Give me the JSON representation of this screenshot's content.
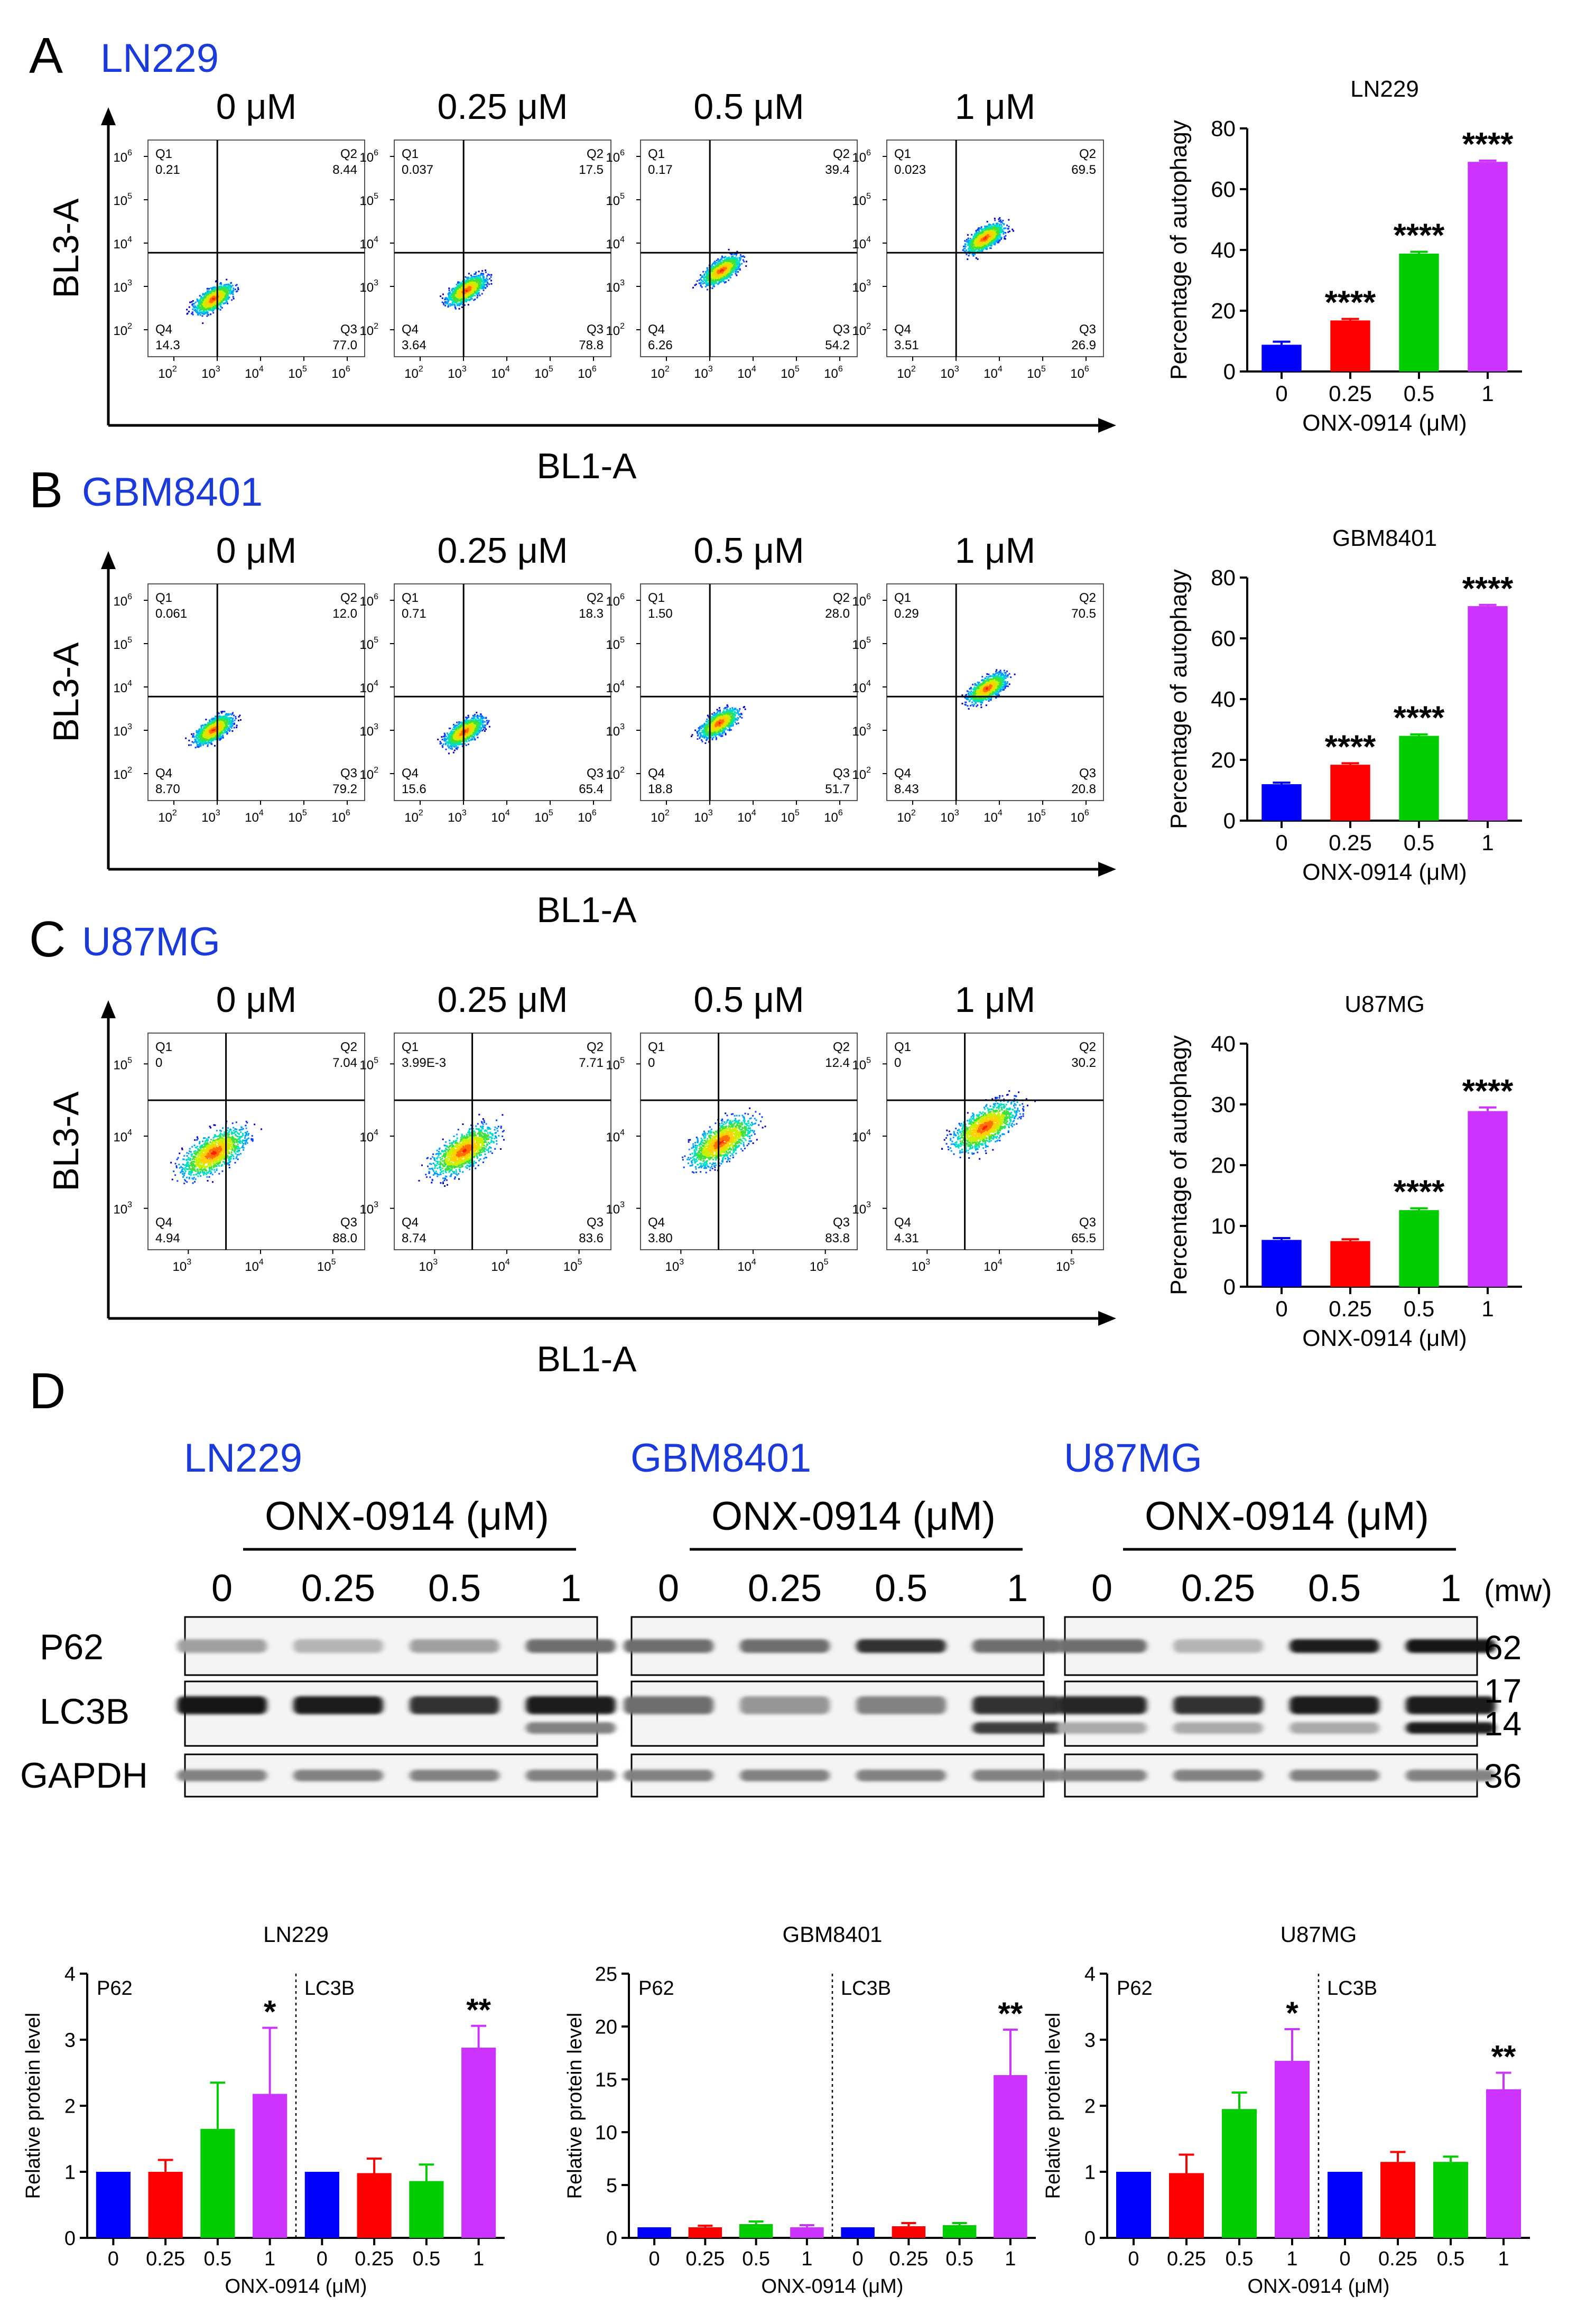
{
  "units": {
    "um": "μM",
    "x_axis": "ONX-0914 (μM)",
    "x_axis_bar": "ONX-0914 (μM)"
  },
  "panels": [
    {
      "letter": "A",
      "cell": "LN229"
    },
    {
      "letter": "B",
      "cell": "GBM8401"
    },
    {
      "letter": "C",
      "cell": "U87MG"
    },
    {
      "letter": "D"
    }
  ],
  "flow": {
    "y_axis_label": "BL3-A",
    "x_axis_label": "BL1-A",
    "doses": [
      "0 μM",
      "0.25 μM",
      "0.5 μM",
      "1 μM"
    ],
    "rows": [
      {
        "cell": "LN229",
        "y_exp": [
          "2",
          "3",
          "4",
          "5",
          "6"
        ],
        "x_exp": [
          "2",
          "3",
          "4",
          "5",
          "6"
        ],
        "plots": [
          {
            "q1": "0.21",
            "q2": "8.44",
            "q3": "77.0",
            "q4": "14.3"
          },
          {
            "q1": "0.037",
            "q2": "17.5",
            "q3": "78.8",
            "q4": "3.64"
          },
          {
            "q1": "0.17",
            "q2": "39.4",
            "q3": "54.2",
            "q4": "6.26"
          },
          {
            "q1": "0.023",
            "q2": "69.5",
            "q3": "26.9",
            "q4": "3.51"
          }
        ]
      },
      {
        "cell": "GBM8401",
        "y_exp": [
          "2",
          "3",
          "4",
          "5",
          "6"
        ],
        "x_exp": [
          "2",
          "3",
          "4",
          "5",
          "6"
        ],
        "plots": [
          {
            "q1": "0.061",
            "q2": "12.0",
            "q3": "79.2",
            "q4": "8.70"
          },
          {
            "q1": "0.71",
            "q2": "18.3",
            "q3": "65.4",
            "q4": "15.6"
          },
          {
            "q1": "1.50",
            "q2": "28.0",
            "q3": "51.7",
            "q4": "18.8"
          },
          {
            "q1": "0.29",
            "q2": "70.5",
            "q3": "20.8",
            "q4": "8.43"
          }
        ]
      },
      {
        "cell": "U87MG",
        "y_exp": [
          "3",
          "4",
          "5"
        ],
        "x_exp": [
          "3",
          "4",
          "5"
        ],
        "plots": [
          {
            "q1": "0",
            "q2": "7.04",
            "q3": "88.0",
            "q4": "4.94"
          },
          {
            "q1": "3.99E-3",
            "q2": "7.71",
            "q3": "83.6",
            "q4": "8.74"
          },
          {
            "q1": "0",
            "q2": "12.4",
            "q3": "83.8",
            "q4": "3.80"
          },
          {
            "q1": "0",
            "q2": "30.2",
            "q3": "65.5",
            "q4": "4.31"
          }
        ]
      }
    ]
  },
  "chart_data": [
    {
      "type": "bar",
      "title": "LN229",
      "ylabel": "Percentage of autophagy",
      "xlabel": "ONX-0914 (μM)",
      "categories": [
        "0",
        "0.25",
        "0.5",
        "1"
      ],
      "values": [
        8.8,
        16.8,
        38.8,
        69.0
      ],
      "errors": [
        1.0,
        0.5,
        0.6,
        0.4
      ],
      "significance": [
        "",
        "****",
        "****",
        "****"
      ],
      "ylim": [
        0,
        80
      ],
      "yticks": [
        0,
        20,
        40,
        60,
        80
      ],
      "colors": [
        "#0000ff",
        "#ff0000",
        "#00cc00",
        "#cc33ff"
      ]
    },
    {
      "type": "bar",
      "title": "GBM8401",
      "ylabel": "Percentage of autophagy",
      "xlabel": "ONX-0914 (μM)",
      "categories": [
        "0",
        "0.25",
        "0.5",
        "1"
      ],
      "values": [
        12.0,
        18.4,
        27.9,
        70.6
      ],
      "errors": [
        0.5,
        0.5,
        0.5,
        0.4
      ],
      "significance": [
        "",
        "****",
        "****",
        "****"
      ],
      "ylim": [
        0,
        80
      ],
      "yticks": [
        0,
        20,
        40,
        60,
        80
      ],
      "colors": [
        "#0000ff",
        "#ff0000",
        "#00cc00",
        "#cc33ff"
      ]
    },
    {
      "type": "bar",
      "title": "U87MG",
      "ylabel": "Percentage of autophagy",
      "xlabel": "ONX-0914 (μM)",
      "categories": [
        "0",
        "0.25",
        "0.5",
        "1"
      ],
      "values": [
        7.7,
        7.5,
        12.6,
        28.9
      ],
      "errors": [
        0.3,
        0.3,
        0.3,
        0.6
      ],
      "significance": [
        "",
        "",
        "****",
        "****"
      ],
      "ylim": [
        0,
        40
      ],
      "yticks": [
        0,
        10,
        20,
        30,
        40
      ],
      "colors": [
        "#0000ff",
        "#ff0000",
        "#00cc00",
        "#cc33ff"
      ]
    },
    {
      "type": "bar",
      "title": "LN229",
      "ylabel": "Relative protein level",
      "xlabel": "ONX-0914 (μM)",
      "groups": [
        "P62",
        "LC3B"
      ],
      "categories": [
        "0",
        "0.25",
        "0.5",
        "1",
        "0",
        "0.25",
        "0.5",
        "1"
      ],
      "values": [
        1.0,
        1.0,
        1.65,
        2.18,
        1.0,
        0.98,
        0.86,
        2.88
      ],
      "errors": [
        0,
        0.18,
        0.7,
        1.0,
        0,
        0.22,
        0.25,
        0.33
      ],
      "significance": [
        "",
        "",
        "",
        "*",
        "",
        "",
        "",
        "**"
      ],
      "ylim": [
        0,
        4
      ],
      "yticks": [
        0,
        1,
        2,
        3,
        4
      ],
      "colors": [
        "#0000ff",
        "#ff0000",
        "#00cc00",
        "#cc33ff",
        "#0000ff",
        "#ff0000",
        "#00cc00",
        "#cc33ff"
      ]
    },
    {
      "type": "bar",
      "title": "GBM8401",
      "ylabel": "Relative protein level",
      "xlabel": "ONX-0914 (μM)",
      "groups": [
        "P62",
        "LC3B"
      ],
      "categories": [
        "0",
        "0.25",
        "0.5",
        "1",
        "0",
        "0.25",
        "0.5",
        "1"
      ],
      "values": [
        1.0,
        1.0,
        1.3,
        1.0,
        1.0,
        1.1,
        1.2,
        15.4
      ],
      "errors": [
        0,
        0.15,
        0.25,
        0.2,
        0,
        0.3,
        0.2,
        4.3
      ],
      "significance": [
        "",
        "",
        "",
        "",
        "",
        "",
        "",
        "**"
      ],
      "ylim": [
        0,
        25
      ],
      "yticks": [
        0,
        5,
        10,
        15,
        20,
        25
      ],
      "colors": [
        "#0000ff",
        "#ff0000",
        "#00cc00",
        "#cc33ff",
        "#0000ff",
        "#ff0000",
        "#00cc00",
        "#cc33ff"
      ]
    },
    {
      "type": "bar",
      "title": "U87MG",
      "ylabel": "Relative protein level",
      "xlabel": "ONX-0914 (μM)",
      "groups": [
        "P62",
        "LC3B"
      ],
      "categories": [
        "0",
        "0.25",
        "0.5",
        "1",
        "0",
        "0.25",
        "0.5",
        "1"
      ],
      "values": [
        1.0,
        0.98,
        1.95,
        2.68,
        1.0,
        1.15,
        1.15,
        2.25
      ],
      "errors": [
        0,
        0.28,
        0.25,
        0.48,
        0,
        0.15,
        0.08,
        0.25
      ],
      "significance": [
        "",
        "",
        "",
        "*",
        "",
        "",
        "",
        "**"
      ],
      "ylim": [
        0,
        4
      ],
      "yticks": [
        0,
        1,
        2,
        3,
        4
      ],
      "colors": [
        "#0000ff",
        "#ff0000",
        "#00cc00",
        "#cc33ff",
        "#0000ff",
        "#ff0000",
        "#00cc00",
        "#cc33ff"
      ]
    }
  ],
  "western": {
    "treatment": "ONX-0914 (μM)",
    "lanes": [
      "0",
      "0.25",
      "0.5",
      "1"
    ],
    "mw_header": "(mw)",
    "proteins": [
      "P62",
      "LC3B",
      "GAPDH"
    ],
    "mw": [
      "62",
      "17",
      "14",
      "36"
    ],
    "blots": [
      {
        "cell": "LN229",
        "p62": [
          0.3,
          0.2,
          0.3,
          0.55
        ],
        "lc3b_upper": [
          1.0,
          0.95,
          0.85,
          0.95
        ],
        "lc3b_lower": [
          0,
          0,
          0,
          0.45
        ],
        "gapdh": [
          0.45,
          0.45,
          0.45,
          0.45
        ]
      },
      {
        "cell": "GBM8401",
        "p62": [
          0.55,
          0.55,
          0.85,
          0.55
        ],
        "lc3b_upper": [
          0.55,
          0.35,
          0.45,
          0.85
        ],
        "lc3b_lower": [
          0,
          0,
          0,
          0.8
        ],
        "gapdh": [
          0.45,
          0.45,
          0.45,
          0.45
        ]
      },
      {
        "cell": "U87MG",
        "p62": [
          0.55,
          0.2,
          0.95,
          1.0
        ],
        "lc3b_upper": [
          0.9,
          0.85,
          0.95,
          0.95
        ],
        "lc3b_lower": [
          0.25,
          0.25,
          0.25,
          0.95
        ],
        "gapdh": [
          0.45,
          0.45,
          0.45,
          0.45
        ]
      }
    ]
  }
}
